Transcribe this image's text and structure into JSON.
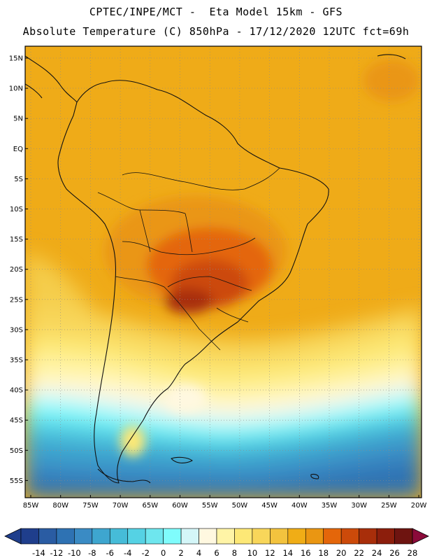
{
  "header": {
    "line1": "CPTEC/INPE/MCT -  Eta Model 15km - GFS",
    "line2": "Absolute Temperature (C) 850hPa - 17/12/2020 12UTC fct=69h"
  },
  "map": {
    "lat_labels": [
      "15N",
      "10N",
      "5N",
      "EQ",
      "5S",
      "10S",
      "15S",
      "20S",
      "25S",
      "30S",
      "35S",
      "40S",
      "45S",
      "50S",
      "55S"
    ],
    "lon_labels": [
      "85W",
      "80W",
      "75W",
      "70W",
      "65W",
      "60W",
      "55W",
      "50W",
      "45W",
      "40W",
      "35W",
      "30W",
      "25W",
      "20W"
    ]
  },
  "colorbar": {
    "labels": [
      "-14",
      "-12",
      "-10",
      "-8",
      "-6",
      "-4",
      "-2",
      "0",
      "2",
      "4",
      "6",
      "8",
      "10",
      "12",
      "14",
      "16",
      "18",
      "20",
      "22",
      "24",
      "26",
      "28"
    ],
    "colors": [
      "#1f3e8c",
      "#2a5ca3",
      "#2e72b3",
      "#3a8bc4",
      "#3ea6cf",
      "#46bcd8",
      "#55d2e4",
      "#6ee6ee",
      "#7ffcfc",
      "#d4f6f8",
      "#fff8e0",
      "#fff4a6",
      "#fde876",
      "#f8d65a",
      "#f3c33e",
      "#f0ad16",
      "#ea9612",
      "#e4660a",
      "#cc4a0a",
      "#a82e0a",
      "#8c1e0c",
      "#6e1410"
    ],
    "low_color": "#1f3e8c",
    "high_color": "#8b0a3a"
  }
}
